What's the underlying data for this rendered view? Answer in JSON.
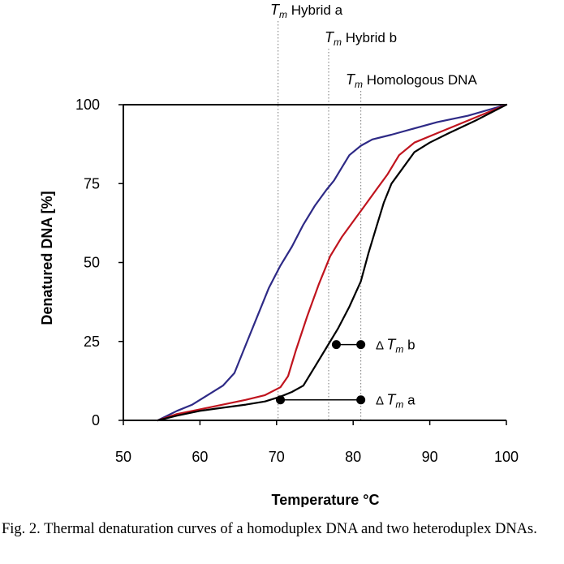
{
  "chart_data": {
    "type": "line",
    "xlabel": "Temperature °C",
    "ylabel": "Denatured DNA [%]",
    "xlim": [
      50,
      100
    ],
    "ylim": [
      0,
      100
    ],
    "xticks": [
      50,
      60,
      70,
      80,
      90,
      100
    ],
    "yticks": [
      0,
      25,
      50,
      75,
      100
    ],
    "grid": false,
    "legend": "none",
    "series": [
      {
        "color": "#2e2a86",
        "x": [
          54.5,
          57,
          59,
          61,
          63,
          64.5,
          66,
          67.5,
          69,
          70.5,
          72,
          73.5,
          75,
          76.5,
          77.5,
          78.5,
          79.5,
          81,
          82.5,
          85,
          88,
          91,
          95,
          100
        ],
        "y": [
          0,
          3,
          5,
          8,
          11,
          15,
          24,
          33,
          42,
          49,
          55,
          62,
          68,
          73,
          76,
          80,
          84,
          87,
          89,
          90.5,
          92.5,
          94.5,
          96.5,
          100
        ]
      },
      {
        "color": "#c0141e",
        "x": [
          54.5,
          57,
          60,
          63,
          66,
          68.5,
          70.5,
          71.5,
          72.5,
          74,
          75.5,
          77,
          78.5,
          80,
          81.5,
          83,
          84.5,
          86,
          88,
          91,
          95,
          100
        ],
        "y": [
          0,
          2,
          3.5,
          5,
          6.5,
          8,
          10.5,
          14,
          22,
          33,
          43,
          52,
          58,
          63,
          68,
          73,
          78,
          84,
          88,
          91,
          95,
          100
        ]
      },
      {
        "color": "#000000",
        "x": [
          54.5,
          57,
          60,
          63,
          66,
          68.5,
          70.5,
          72,
          73.5,
          75,
          76.5,
          78,
          79.5,
          81,
          82,
          83,
          84,
          85,
          86.5,
          88,
          90,
          92.5,
          96,
          100
        ],
        "y": [
          0,
          1.5,
          3,
          4,
          5,
          6,
          7.5,
          9,
          11,
          17,
          23,
          29,
          36,
          44,
          53,
          61,
          69,
          75,
          80,
          85,
          88,
          91,
          95,
          100
        ]
      }
    ],
    "reference_lines": [
      {
        "x": 70.2,
        "label_italic": "T",
        "label_sub": "m",
        "label_text": " Hybrid  a"
      },
      {
        "x": 76.8,
        "label_italic": "T",
        "label_sub": "m",
        "label_text": " Hybrid  b"
      },
      {
        "x": 81.0,
        "label_italic": "T",
        "label_sub": "m",
        "label_text": " Homologous DNA"
      }
    ],
    "delta_markers": [
      {
        "x1": 70.5,
        "x2": 81.0,
        "y": 6.5,
        "label_prefix": "Δ",
        "label_italic": "T",
        "label_sub": "m",
        "label_text": " a"
      },
      {
        "x1": 77.8,
        "x2": 81.0,
        "y": 24,
        "label_prefix": "Δ",
        "label_italic": "T",
        "label_sub": "m",
        "label_text": " b"
      }
    ]
  },
  "caption": "Fig. 2. Thermal denaturation curves of a homoduplex DNA and two heteroduplex DNAs."
}
